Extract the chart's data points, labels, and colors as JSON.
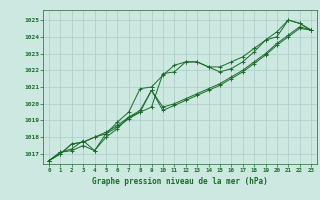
{
  "title": "Graphe pression niveau de la mer (hPa)",
  "bg_color": "#cce8e0",
  "grid_color": "#aacccc",
  "line_color": "#1a6b2a",
  "marker": "+",
  "x_ticks": [
    0,
    1,
    2,
    3,
    4,
    5,
    6,
    7,
    8,
    9,
    10,
    11,
    12,
    13,
    14,
    15,
    16,
    17,
    18,
    19,
    20,
    21,
    22,
    23
  ],
  "ylim": [
    1016.4,
    1025.6
  ],
  "xlim": [
    -0.5,
    23.5
  ],
  "yticks": [
    1017,
    1018,
    1019,
    1020,
    1021,
    1022,
    1023,
    1024,
    1025
  ],
  "series": [
    [
      1016.6,
      1017.1,
      1017.2,
      1017.5,
      1017.2,
      1018.0,
      1018.5,
      1019.2,
      1019.5,
      1019.8,
      1021.8,
      1021.9,
      1022.5,
      1022.5,
      1022.2,
      1022.2,
      1022.5,
      1022.8,
      1023.3,
      1023.8,
      1024.0,
      1025.0,
      1024.8,
      1024.4
    ],
    [
      1016.6,
      1017.0,
      1017.6,
      1017.7,
      1018.0,
      1018.2,
      1018.6,
      1019.1,
      1019.5,
      1020.8,
      1019.6,
      1019.9,
      1020.2,
      1020.5,
      1020.8,
      1021.1,
      1021.5,
      1021.9,
      1022.4,
      1022.9,
      1023.5,
      1024.0,
      1024.5,
      1024.4
    ],
    [
      1016.6,
      1017.0,
      1017.6,
      1017.7,
      1018.0,
      1018.3,
      1018.7,
      1019.2,
      1019.6,
      1020.8,
      1019.8,
      1020.0,
      1020.3,
      1020.6,
      1020.9,
      1021.2,
      1021.6,
      1022.0,
      1022.5,
      1023.0,
      1023.6,
      1024.1,
      1024.6,
      1024.4
    ],
    [
      1016.6,
      1017.1,
      1017.3,
      1017.8,
      1017.2,
      1018.2,
      1018.9,
      1019.5,
      1020.9,
      1021.0,
      1021.7,
      1022.3,
      1022.5,
      1022.5,
      1022.2,
      1021.9,
      1022.1,
      1022.5,
      1023.1,
      1023.8,
      1024.3,
      1025.0,
      1024.8,
      1024.4
    ]
  ],
  "tick_fontsize": 4.2,
  "title_fontsize": 5.5,
  "linewidth": 0.7,
  "markersize": 2.5
}
